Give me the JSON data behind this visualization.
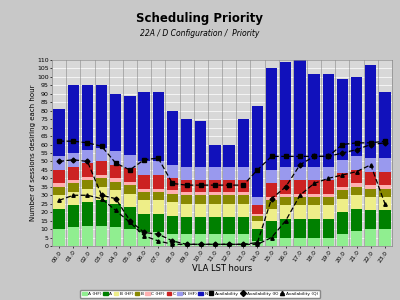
{
  "title": "Scheduling Priority",
  "subtitle": "22A / D Configuration /  Priority",
  "xlabel": "VLA LST hours",
  "ylabel": "Number of sessions desiring each hour",
  "hours": [
    "00.0",
    "01.0",
    "02.0",
    "03.0",
    "04.0",
    "05.0",
    "06.0",
    "07.0",
    "08.0",
    "09.0",
    "10.0",
    "11.0",
    "12.0",
    "13.0",
    "14.0",
    "15.0",
    "16.0",
    "17.0",
    "18.0",
    "19.0",
    "20.0",
    "21.0",
    "22.0",
    "23.0"
  ],
  "A_HF": [
    10,
    11,
    12,
    12,
    11,
    10,
    8,
    8,
    7,
    7,
    7,
    7,
    7,
    7,
    3,
    5,
    5,
    5,
    5,
    5,
    7,
    9,
    10,
    10
  ],
  "A": [
    12,
    13,
    14,
    15,
    14,
    13,
    11,
    11,
    11,
    10,
    10,
    10,
    10,
    10,
    7,
    10,
    11,
    11,
    11,
    11,
    13,
    13,
    11,
    11
  ],
  "B_HF": [
    8,
    8,
    8,
    8,
    8,
    8,
    8,
    8,
    8,
    8,
    8,
    8,
    8,
    8,
    5,
    7,
    8,
    8,
    8,
    8,
    8,
    8,
    8,
    8
  ],
  "B": [
    5,
    5,
    5,
    5,
    5,
    5,
    5,
    5,
    5,
    5,
    5,
    5,
    5,
    5,
    3,
    5,
    5,
    5,
    5,
    5,
    5,
    5,
    5,
    5
  ],
  "C_HF": [
    2,
    2,
    2,
    2,
    2,
    2,
    2,
    2,
    2,
    2,
    2,
    2,
    2,
    2,
    1,
    2,
    2,
    2,
    2,
    2,
    2,
    2,
    2,
    2
  ],
  "C": [
    8,
    8,
    8,
    8,
    8,
    8,
    8,
    8,
    7,
    7,
    7,
    7,
    7,
    7,
    5,
    8,
    8,
    8,
    8,
    8,
    8,
    8,
    8,
    8
  ],
  "N_HF": [
    8,
    8,
    8,
    8,
    8,
    8,
    8,
    8,
    8,
    8,
    8,
    8,
    8,
    8,
    5,
    8,
    8,
    8,
    8,
    8,
    8,
    8,
    8,
    8
  ],
  "N": [
    28,
    40,
    38,
    37,
    34,
    35,
    41,
    41,
    32,
    28,
    27,
    13,
    13,
    28,
    54,
    60,
    62,
    65,
    55,
    55,
    48,
    47,
    55,
    39
  ],
  "avail": [
    62,
    62,
    61,
    59,
    49,
    45,
    51,
    52,
    37,
    36,
    36,
    36,
    36,
    36,
    45,
    53,
    53,
    53,
    53,
    53,
    60,
    61,
    61,
    62
  ],
  "avail_K": [
    50,
    51,
    50,
    30,
    28,
    15,
    8,
    7,
    3,
    1,
    1,
    1,
    1,
    1,
    2,
    28,
    35,
    48,
    53,
    53,
    55,
    57,
    60,
    61
  ],
  "avail_Q": [
    27,
    30,
    30,
    28,
    21,
    14,
    6,
    3,
    1,
    1,
    1,
    1,
    1,
    1,
    1,
    5,
    15,
    30,
    37,
    40,
    42,
    44,
    48,
    25
  ],
  "colors": {
    "A_HF": "#90EE90",
    "A": "#008000",
    "B_HF": "#EEEE88",
    "B": "#888800",
    "C_HF": "#FFB0B0",
    "C": "#CC2222",
    "N_HF": "#9999EE",
    "N": "#1111BB"
  },
  "bg_color": "#C8C8C8",
  "plot_bg": "#D8D8D8",
  "ylim": [
    0,
    110
  ],
  "yticks": [
    0,
    5,
    10,
    15,
    20,
    25,
    30,
    35,
    40,
    45,
    50,
    55,
    60,
    65,
    70,
    75,
    80,
    85,
    90,
    95,
    100,
    105,
    110
  ]
}
